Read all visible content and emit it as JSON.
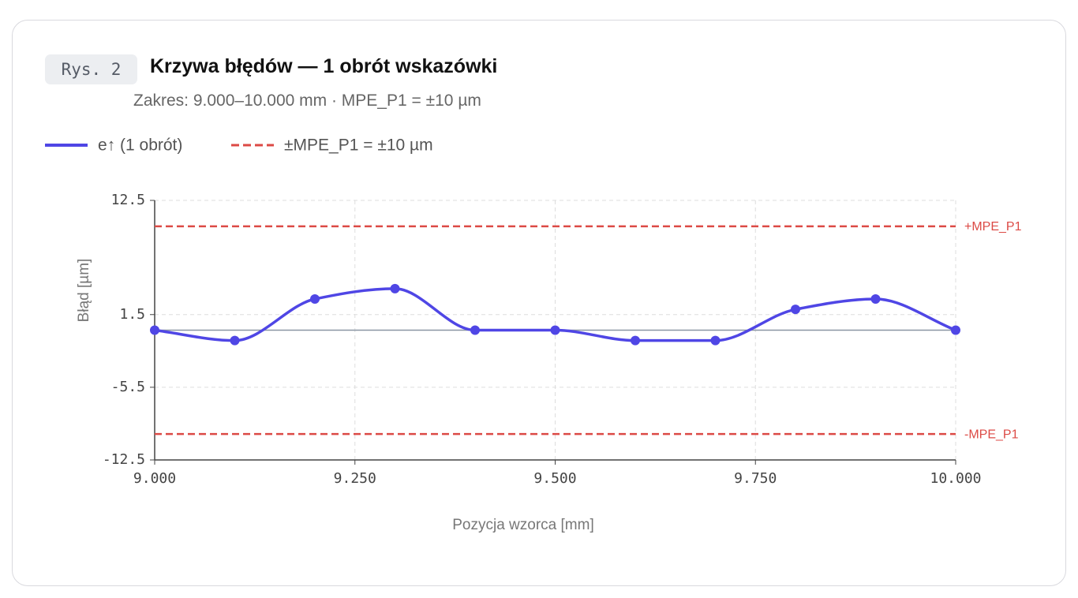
{
  "badge": "Rys. 2",
  "chart_data": {
    "type": "line",
    "title": "Krzywa błędów — 1 obrót wskazówki",
    "subtitle": "Zakres: 9.000–10.000 mm · MPE_P1 = ±10 µm",
    "x_label": "Pozycja wzorca [mm]",
    "y_label": "Błąd [µm]",
    "x": [
      9.0,
      9.1,
      9.2,
      9.3,
      9.4,
      9.5,
      9.6,
      9.7,
      9.8,
      9.9,
      10.0
    ],
    "series": [
      {
        "name": "e↑ (1 obrót)",
        "color": "#4f46e5",
        "values": [
          0,
          -1,
          3,
          4,
          0,
          0,
          -1,
          -1,
          2,
          3,
          0
        ]
      }
    ],
    "reference": {
      "name": "±MPE_P1 = ±10 µm",
      "color": "#dc4a45",
      "lines": [
        {
          "value": 10,
          "label": "+MPE_P1"
        },
        {
          "value": -10,
          "label": "-MPE_P1"
        }
      ]
    },
    "xlim": [
      9.0,
      10.0
    ],
    "xticks": [
      {
        "value": 9.0,
        "label": "9.000"
      },
      {
        "value": 9.25,
        "label": "9.250"
      },
      {
        "value": 9.5,
        "label": "9.500"
      },
      {
        "value": 9.75,
        "label": "9.750"
      },
      {
        "value": 10.0,
        "label": "10.000"
      }
    ],
    "ylim": [
      -12.5,
      12.5
    ],
    "yticks": [
      12.5,
      1.5,
      -5.5,
      -12.5
    ],
    "grid": true
  }
}
